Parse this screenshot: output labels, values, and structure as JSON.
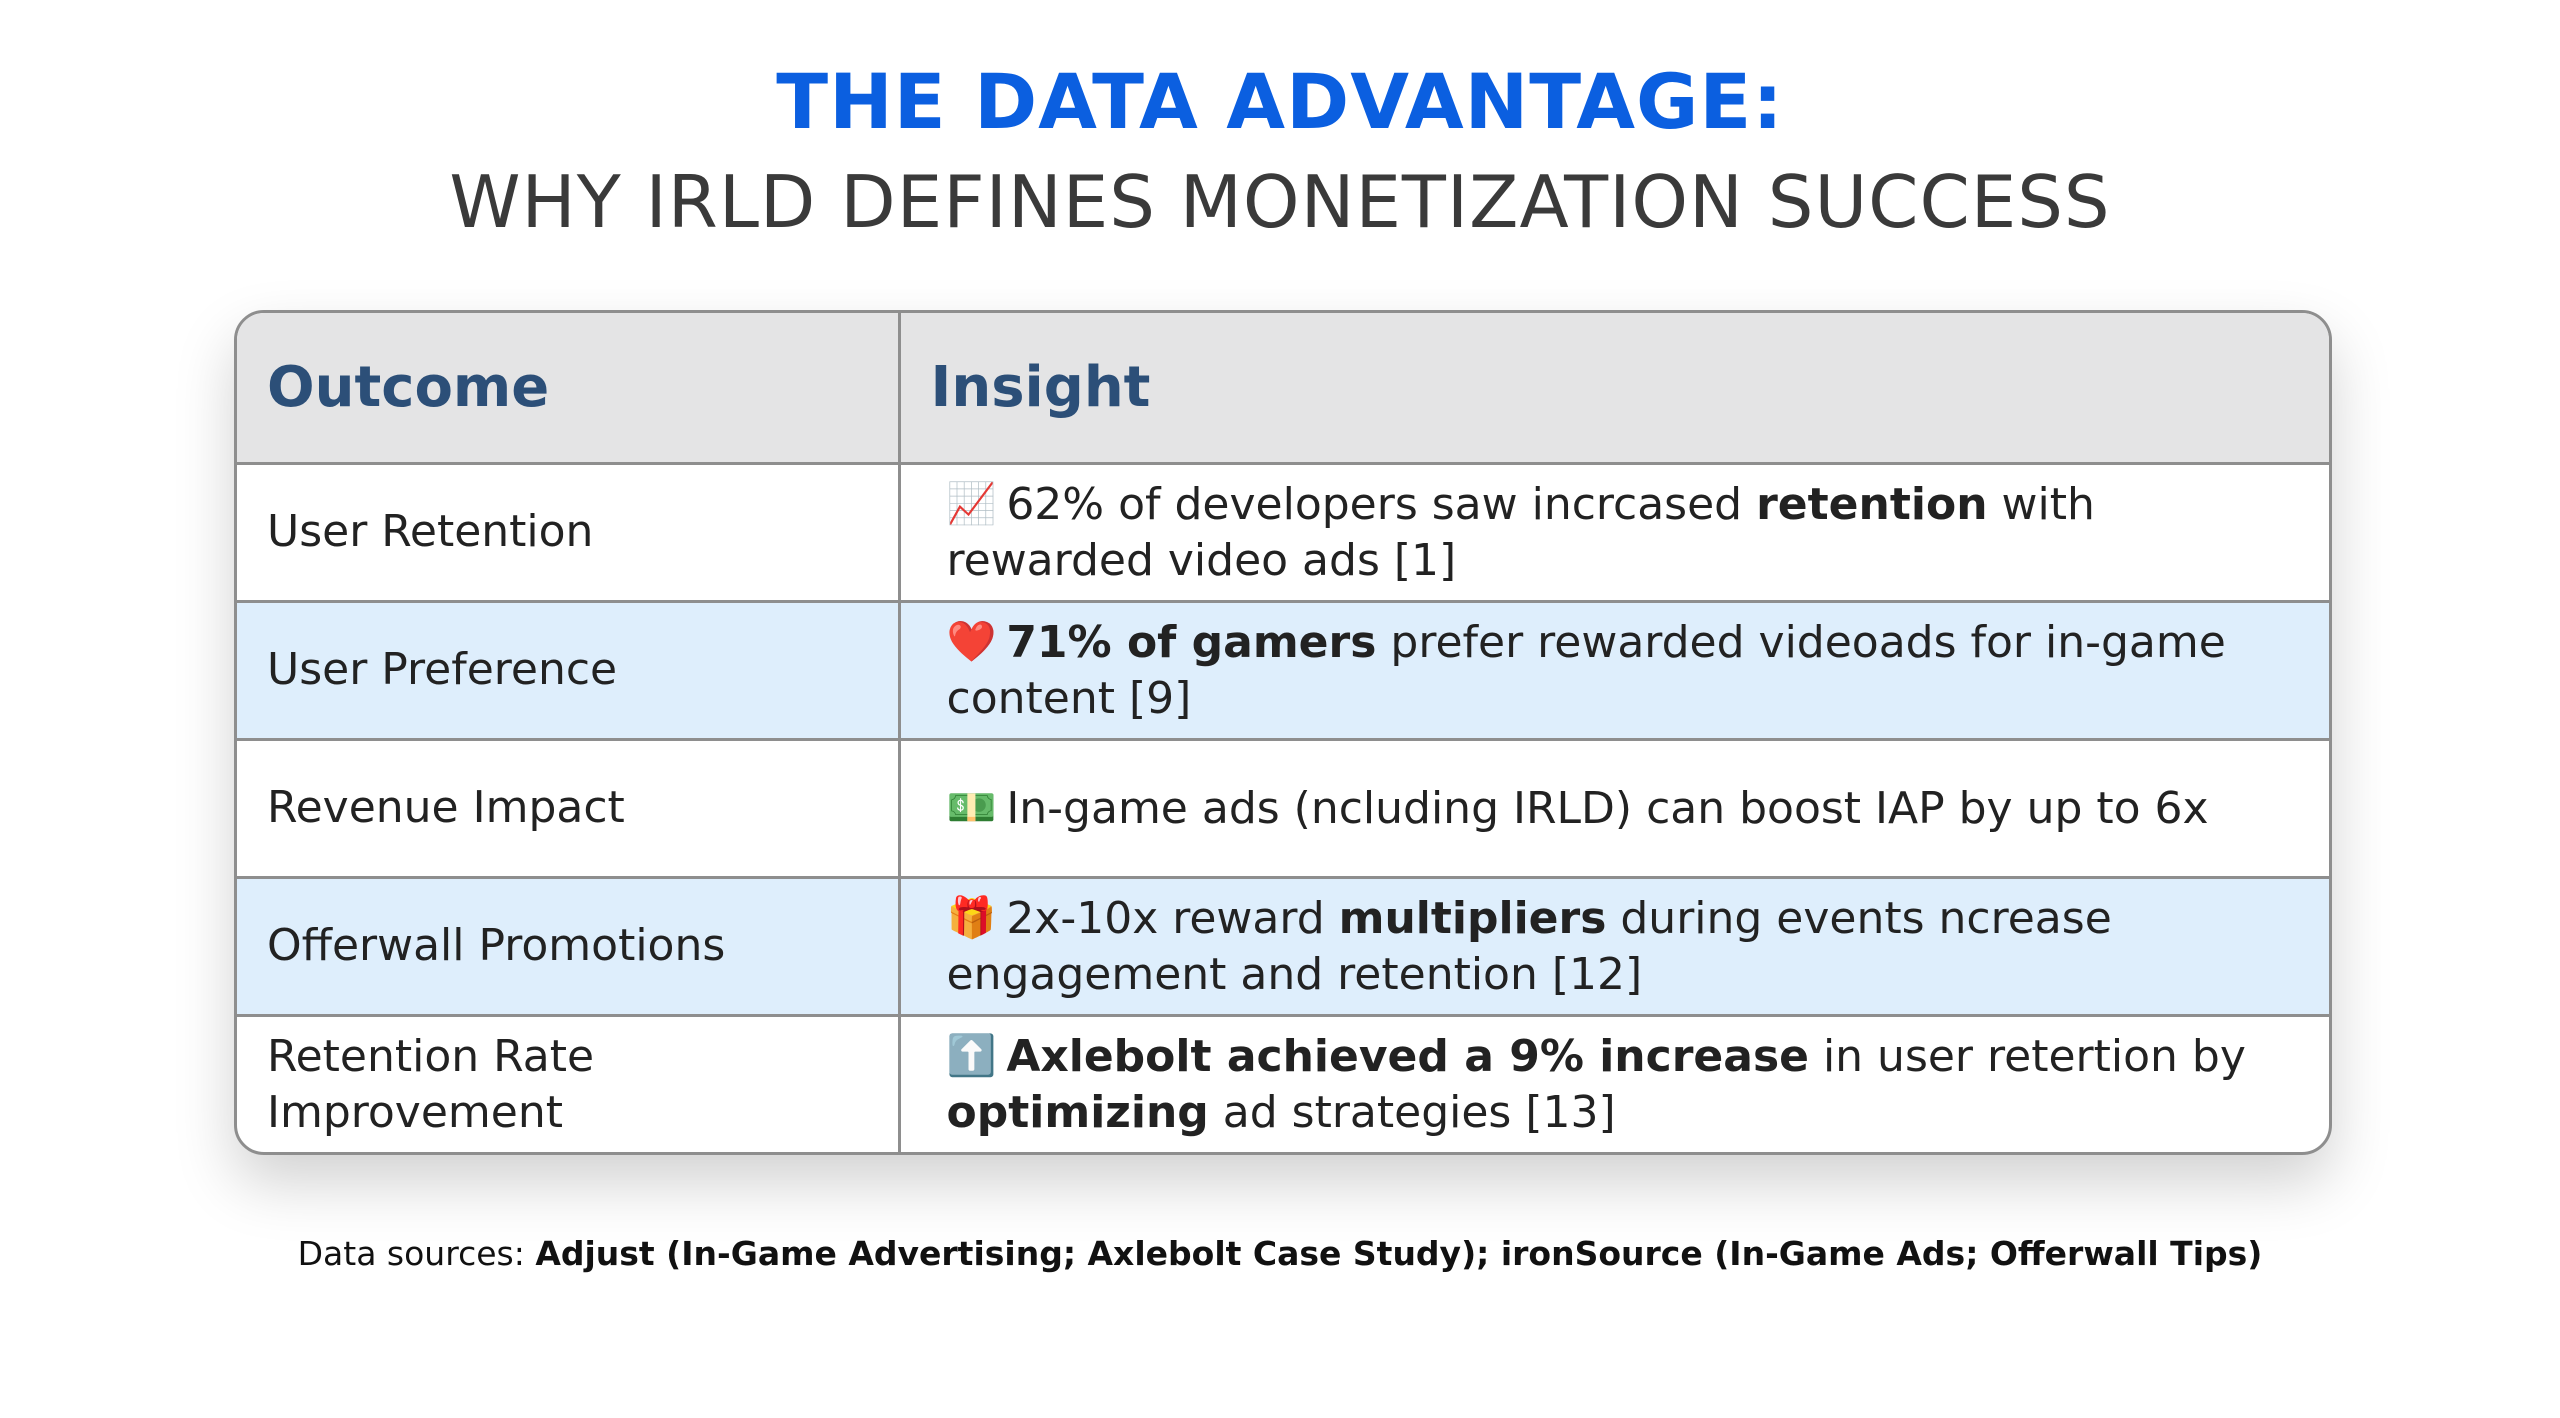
{
  "title": {
    "line1": "THE DATA ADVANTAGE:",
    "line2": "WHY IRLD DEFINES MONETIZATION SUCCESS"
  },
  "table": {
    "headers": {
      "outcome": "Outcome",
      "insight": "Insight"
    },
    "rows": [
      {
        "outcome": "User Retention",
        "icon": "chart-increasing-icon",
        "icon_glyph": "📈",
        "insight": [
          {
            "text": "62% of developers saw incrcased ",
            "bold": false
          },
          {
            "text": "retention",
            "bold": true
          },
          {
            "text": " with rewarded video ads [1]",
            "bold": false
          }
        ]
      },
      {
        "outcome": "User Preference",
        "icon": "heart-icon",
        "icon_glyph": "❤️",
        "insight": [
          {
            "text": "71% of gamers",
            "bold": true
          },
          {
            "text": " prefer rewarded videoads for in-game content [9]",
            "bold": false
          }
        ]
      },
      {
        "outcome": "Revenue Impact",
        "icon": "dollar-banknote-icon",
        "icon_glyph": "💵",
        "insight": [
          {
            "text": "In-game ads (ncluding IRLD) can boost IAP by up to 6x",
            "bold": false
          }
        ]
      },
      {
        "outcome": "Offerwall Promotions",
        "icon": "gift-icon",
        "icon_glyph": "🎁",
        "insight": [
          {
            "text": "2x-10x reward ",
            "bold": false
          },
          {
            "text": "multipliers",
            "bold": true
          },
          {
            "text": " during events ncrease engagement and retention [12]",
            "bold": false
          }
        ]
      },
      {
        "outcome": "Retention Rate Improvement",
        "icon": "up-arrow-icon",
        "icon_glyph": "⬆️",
        "insight": [
          {
            "text": "Axlebolt achieved a 9% increase",
            "bold": true
          },
          {
            "text": " in user retertion by ",
            "bold": false
          },
          {
            "text": "optimizing",
            "bold": true
          },
          {
            "text": " ad strategies [13]",
            "bold": false
          }
        ]
      }
    ]
  },
  "footer": {
    "prefix": "Data sources: ",
    "sources": "Adjust (In-Game Advertising; Axlebolt Case Study); ironSource (In-Game Ads; Offerwall Tips)"
  },
  "colors": {
    "title_accent": "#0b5fe0",
    "header_text": "#2c4f78",
    "header_bg": "#e4e4e5",
    "alt_row_bg": "#deeefc"
  }
}
